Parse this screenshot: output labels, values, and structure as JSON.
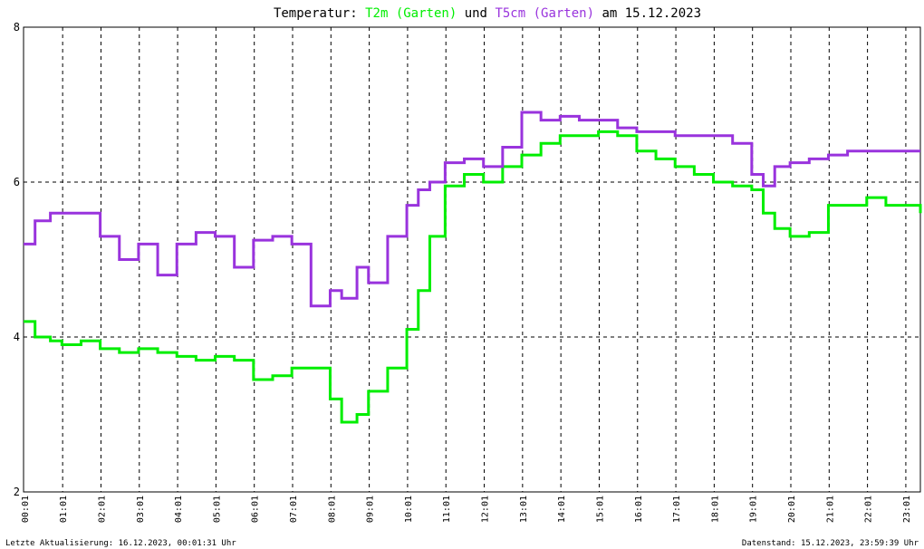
{
  "chart_data": {
    "type": "line",
    "title": {
      "prefix": "Temperatur:",
      "connector": "und",
      "suffix": "am 15.12.2023"
    },
    "x": [
      0,
      0.3,
      0.7,
      1,
      1.5,
      2,
      2.5,
      3,
      3.5,
      4,
      4.5,
      5,
      5.5,
      6,
      6.5,
      7,
      7.5,
      8,
      8.3,
      8.7,
      9,
      9.5,
      10,
      10.3,
      10.6,
      11,
      11.5,
      12,
      12.5,
      13,
      13.5,
      14,
      14.5,
      15,
      15.5,
      16,
      16.5,
      17,
      17.5,
      18,
      18.5,
      19,
      19.3,
      19.6,
      20,
      20.5,
      21,
      21.5,
      22,
      22.5,
      23,
      23.4
    ],
    "series": [
      {
        "name": "T2m (Garten)",
        "color": "#00ee00",
        "values": [
          4.2,
          4.0,
          3.95,
          3.9,
          3.95,
          3.85,
          3.8,
          3.85,
          3.8,
          3.75,
          3.7,
          3.75,
          3.7,
          3.45,
          3.5,
          3.6,
          3.6,
          3.2,
          2.9,
          3.0,
          3.3,
          3.6,
          4.1,
          4.6,
          5.3,
          5.95,
          6.1,
          6.0,
          6.2,
          6.35,
          6.5,
          6.6,
          6.6,
          6.65,
          6.6,
          6.4,
          6.3,
          6.2,
          6.1,
          6.0,
          5.95,
          5.9,
          5.6,
          5.4,
          5.3,
          5.35,
          5.7,
          5.7,
          5.8,
          5.7,
          5.7,
          5.6
        ]
      },
      {
        "name": "T5cm (Garten)",
        "color": "#9933dd",
        "values": [
          5.2,
          5.5,
          5.6,
          5.6,
          5.6,
          5.3,
          5.0,
          5.2,
          4.8,
          5.2,
          5.35,
          5.3,
          4.9,
          5.25,
          5.3,
          5.2,
          4.4,
          4.6,
          4.5,
          4.9,
          4.7,
          5.3,
          5.7,
          5.9,
          6.0,
          6.25,
          6.3,
          6.2,
          6.45,
          6.9,
          6.8,
          6.85,
          6.8,
          6.8,
          6.7,
          6.65,
          6.65,
          6.6,
          6.6,
          6.6,
          6.5,
          6.1,
          5.95,
          6.2,
          6.25,
          6.3,
          6.35,
          6.4,
          6.4,
          6.4,
          6.4,
          6.4
        ]
      }
    ],
    "xlim": [
      0,
      23.4
    ],
    "xticks": [
      {
        "value": 0.02,
        "label": "00:01"
      },
      {
        "value": 1.02,
        "label": "01:01"
      },
      {
        "value": 2.02,
        "label": "02:01"
      },
      {
        "value": 3.02,
        "label": "03:01"
      },
      {
        "value": 4.02,
        "label": "04:01"
      },
      {
        "value": 5.02,
        "label": "05:01"
      },
      {
        "value": 6.02,
        "label": "06:01"
      },
      {
        "value": 7.02,
        "label": "07:01"
      },
      {
        "value": 8.02,
        "label": "08:01"
      },
      {
        "value": 9.02,
        "label": "09:01"
      },
      {
        "value": 10.02,
        "label": "10:01"
      },
      {
        "value": 11.02,
        "label": "11:01"
      },
      {
        "value": 12.02,
        "label": "12:01"
      },
      {
        "value": 13.02,
        "label": "13:01"
      },
      {
        "value": 14.02,
        "label": "14:01"
      },
      {
        "value": 15.02,
        "label": "15:01"
      },
      {
        "value": 16.02,
        "label": "16:01"
      },
      {
        "value": 17.02,
        "label": "17:01"
      },
      {
        "value": 18.02,
        "label": "18:01"
      },
      {
        "value": 19.02,
        "label": "19:01"
      },
      {
        "value": 20.02,
        "label": "20:01"
      },
      {
        "value": 21.02,
        "label": "21:01"
      },
      {
        "value": 22.02,
        "label": "22:01"
      },
      {
        "value": 23.02,
        "label": "23:01"
      }
    ],
    "ylim": [
      2,
      8
    ],
    "yticks": [
      2,
      4,
      6,
      8
    ],
    "grid": true,
    "footer_left": "Letzte Aktualisierung: 16.12.2023, 00:01:31 Uhr",
    "footer_right": "Datenstand: 15.12.2023, 23:59:39 Uhr"
  }
}
